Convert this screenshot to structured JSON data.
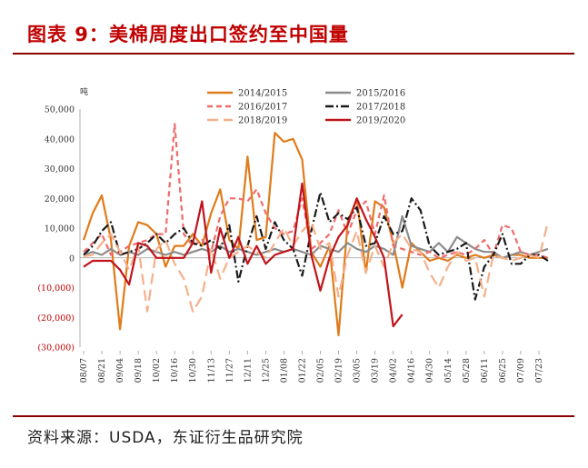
{
  "title": "图表 9：美棉周度出口签约至中国量",
  "source": "资料来源：USDA，东证衍生品研究院",
  "chart_data": {
    "type": "line",
    "title": "美棉周度出口签约至中国量",
    "ylabel": "吨",
    "xlabel": "",
    "ylim": [
      -30000,
      50000
    ],
    "yticks": [
      50000,
      40000,
      30000,
      20000,
      10000,
      0,
      -10000,
      -20000,
      -30000
    ],
    "ytick_labels": [
      "50,000",
      "40,000",
      "30,000",
      "20,000",
      "10,000",
      "0",
      "(10,000)",
      "(20,000)",
      "(30,000)"
    ],
    "ytick_negative_color": "#c00000",
    "x": [
      "08/07",
      "08/14",
      "08/21",
      "08/28",
      "09/04",
      "09/11",
      "09/18",
      "09/25",
      "10/02",
      "10/09",
      "10/16",
      "10/23",
      "10/30",
      "11/06",
      "11/13",
      "11/20",
      "11/27",
      "12/04",
      "12/11",
      "12/18",
      "12/25",
      "01/01",
      "01/08",
      "01/15",
      "01/22",
      "01/29",
      "02/05",
      "02/12",
      "02/19",
      "02/26",
      "03/05",
      "03/12",
      "03/19",
      "03/26",
      "04/02",
      "04/09",
      "04/16",
      "04/23",
      "04/30",
      "05/07",
      "05/14",
      "05/21",
      "05/28",
      "06/04",
      "06/11",
      "06/18",
      "06/25",
      "07/02",
      "07/09",
      "07/16",
      "07/23",
      "07/30"
    ],
    "xtick_labels": [
      "08/07",
      "08/21",
      "09/04",
      "09/18",
      "10/02",
      "10/16",
      "10/30",
      "11/13",
      "11/27",
      "12/11",
      "12/25",
      "01/08",
      "01/22",
      "02/05",
      "02/19",
      "03/05",
      "03/19",
      "04/02",
      "04/16",
      "04/30",
      "05/14",
      "05/28",
      "06/11",
      "06/25",
      "07/09",
      "07/23"
    ],
    "legend_position": "top-center",
    "series": [
      {
        "name": "2014/2015",
        "color": "#e07b1a",
        "dash": "solid",
        "values": [
          6000,
          15000,
          21000,
          6000,
          -24000,
          4000,
          12000,
          11000,
          8000,
          -3000,
          4000,
          4000,
          8000,
          4000,
          15000,
          23000,
          6000,
          3000,
          34000,
          6000,
          7000,
          42000,
          39000,
          40000,
          33000,
          2000,
          -3000,
          4000,
          -26000,
          12000,
          20000,
          -5000,
          19000,
          17000,
          5000,
          -10000,
          5000,
          2000,
          -1000,
          0,
          -1000,
          1000,
          0,
          1000,
          0,
          1000,
          0,
          1000,
          1000,
          0,
          0,
          0
        ]
      },
      {
        "name": "2015/2016",
        "color": "#8c8c8c",
        "dash": "solid",
        "values": [
          1000,
          2000,
          1000,
          3000,
          1000,
          2000,
          1000,
          3000,
          2000,
          1000,
          2000,
          1000,
          2000,
          3000,
          2000,
          4000,
          2000,
          3000,
          2000,
          1000,
          2000,
          3000,
          2000,
          3000,
          2000,
          1000,
          4000,
          3000,
          2000,
          5000,
          3000,
          2000,
          4000,
          3000,
          1000,
          14000,
          4000,
          3000,
          2000,
          5000,
          2000,
          7000,
          5000,
          3000,
          2000,
          2000,
          0,
          1000,
          2000,
          1000,
          2000,
          3000
        ]
      },
      {
        "name": "2016/2017",
        "color": "#f06b6b",
        "dash": "dash",
        "values": [
          2000,
          5000,
          8000,
          1000,
          2000,
          4000,
          5000,
          6000,
          8000,
          8000,
          45000,
          8000,
          4000,
          6000,
          2000,
          14000,
          20000,
          20000,
          19000,
          23000,
          15000,
          10000,
          8000,
          9000,
          20000,
          3000,
          5000,
          8000,
          16000,
          8000,
          16000,
          19000,
          8000,
          21000,
          4000,
          3000,
          2000,
          1000,
          2000,
          0,
          1000,
          2000,
          1000,
          3000,
          6000,
          1000,
          11000,
          10000,
          2000,
          1000,
          1000,
          0
        ]
      },
      {
        "name": "2017/2018",
        "color": "#1a1a1a",
        "dash": "dashdot",
        "values": [
          1000,
          4000,
          9000,
          12000,
          1000,
          2000,
          3000,
          5000,
          8000,
          5000,
          8000,
          10000,
          5000,
          4000,
          6000,
          3000,
          11000,
          -8000,
          4000,
          14000,
          3000,
          12000,
          6000,
          3000,
          -6000,
          9000,
          22000,
          12000,
          15000,
          13000,
          17000,
          4000,
          5000,
          14000,
          8000,
          9000,
          20000,
          16000,
          4000,
          1000,
          2000,
          3000,
          5000,
          -14000,
          -3000,
          1000,
          8000,
          -2000,
          -2000,
          1000,
          1000,
          -1000
        ]
      },
      {
        "name": "2018/2019",
        "color": "#f5b08a",
        "dash": "longdash",
        "values": [
          500,
          1000,
          5000,
          8000,
          2000,
          -4000,
          4000,
          -18000,
          3000,
          6000,
          -2000,
          -7000,
          -18000,
          -13000,
          3000,
          -7000,
          0,
          2000,
          4000,
          2000,
          0,
          5000,
          10000,
          4000,
          9000,
          12000,
          3000,
          5000,
          -13000,
          1000,
          9000,
          -5000,
          4000,
          -3000,
          5000,
          8000,
          3000,
          2000,
          -5000,
          -10000,
          -3000,
          2000,
          -1000,
          0,
          -13000,
          1000,
          0,
          -1000,
          0,
          1000,
          0,
          12000
        ]
      },
      {
        "name": "2019/2020",
        "color": "#c0141c",
        "dash": "solid",
        "values": [
          -3000,
          -1000,
          -1000,
          -1000,
          -4000,
          -9000,
          5000,
          4000,
          0,
          0,
          0,
          0,
          5000,
          19000,
          -5000,
          10000,
          0,
          7000,
          -2000,
          4000,
          -2000,
          1000,
          2000,
          3000,
          25000,
          1000,
          -11000,
          0,
          7000,
          11000,
          20000,
          13000,
          7000,
          0,
          -23000,
          -19000,
          null,
          null,
          null,
          null,
          null,
          null,
          null,
          null,
          null,
          null,
          null,
          null,
          null,
          null,
          null,
          null
        ]
      }
    ]
  }
}
